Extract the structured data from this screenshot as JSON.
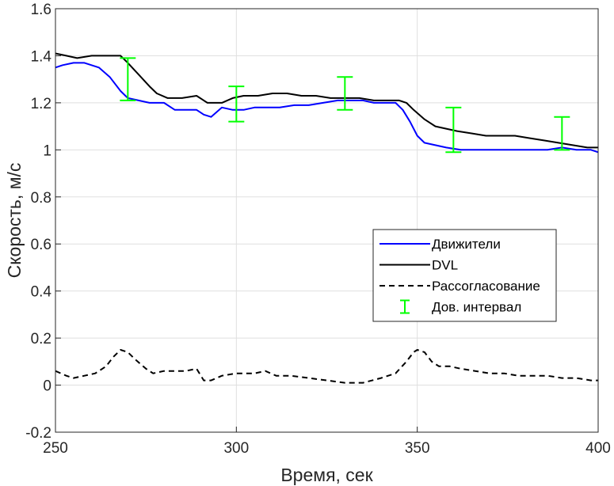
{
  "chart_data": {
    "type": "line",
    "xlabel": "Время, сек",
    "ylabel": "Скорость, м/с",
    "xlim": [
      250,
      400
    ],
    "ylim": [
      -0.2,
      1.6
    ],
    "xticks": [
      "250",
      "300",
      "350",
      "400"
    ],
    "yticks": [
      "-0.2",
      "0",
      "0.2",
      "0.4",
      "0.6",
      "0.8",
      "1",
      "1.2",
      "1.4",
      "1.6"
    ],
    "grid": true,
    "legend_position": "right-middle",
    "series": [
      {
        "name": "Движители",
        "color": "#0000ff",
        "style": "solid",
        "x": [
          250,
          252,
          255,
          258,
          262,
          265,
          268,
          270,
          273,
          276,
          280,
          283,
          286,
          289,
          291,
          293,
          296,
          299,
          302,
          305,
          308,
          312,
          316,
          320,
          324,
          328,
          332,
          335,
          338,
          341,
          344,
          346,
          348,
          350,
          352,
          355,
          358,
          362,
          366,
          370,
          374,
          378,
          382,
          386,
          390,
          394,
          398,
          400
        ],
        "y": [
          1.35,
          1.36,
          1.37,
          1.37,
          1.35,
          1.31,
          1.25,
          1.22,
          1.21,
          1.2,
          1.2,
          1.17,
          1.17,
          1.17,
          1.15,
          1.14,
          1.18,
          1.17,
          1.17,
          1.18,
          1.18,
          1.18,
          1.19,
          1.19,
          1.2,
          1.21,
          1.21,
          1.21,
          1.2,
          1.2,
          1.2,
          1.17,
          1.12,
          1.06,
          1.03,
          1.02,
          1.01,
          1.0,
          1.0,
          1.0,
          1.0,
          1.0,
          1.0,
          1.0,
          1.01,
          1.0,
          1.0,
          0.99
        ]
      },
      {
        "name": "DVL",
        "color": "#000000",
        "style": "solid",
        "x": [
          250,
          253,
          256,
          260,
          264,
          268,
          270,
          273,
          276,
          278,
          281,
          285,
          289,
          292,
          294,
          296,
          299,
          302,
          306,
          310,
          314,
          318,
          322,
          326,
          330,
          334,
          338,
          342,
          345,
          347,
          349,
          352,
          355,
          358,
          361,
          365,
          369,
          373,
          377,
          381,
          385,
          389,
          393,
          397,
          400
        ],
        "y": [
          1.41,
          1.4,
          1.39,
          1.4,
          1.4,
          1.4,
          1.37,
          1.32,
          1.27,
          1.24,
          1.22,
          1.22,
          1.23,
          1.2,
          1.2,
          1.2,
          1.22,
          1.23,
          1.23,
          1.24,
          1.24,
          1.23,
          1.23,
          1.22,
          1.22,
          1.22,
          1.21,
          1.21,
          1.21,
          1.2,
          1.17,
          1.13,
          1.1,
          1.09,
          1.08,
          1.07,
          1.06,
          1.06,
          1.06,
          1.05,
          1.04,
          1.03,
          1.02,
          1.01,
          1.01
        ]
      },
      {
        "name": "Рассогласование",
        "color": "#000000",
        "style": "dashed",
        "x": [
          250,
          253,
          255,
          258,
          261,
          264,
          266,
          268,
          270,
          272,
          275,
          277,
          280,
          283,
          286,
          289,
          291,
          293,
          296,
          300,
          305,
          308,
          311,
          315,
          320,
          325,
          330,
          335,
          340,
          344,
          347,
          349,
          350,
          352,
          354,
          356,
          359,
          362,
          366,
          370,
          374,
          378,
          382,
          386,
          390,
          394,
          398,
          400
        ],
        "y": [
          0.06,
          0.04,
          0.03,
          0.04,
          0.05,
          0.08,
          0.12,
          0.15,
          0.14,
          0.11,
          0.07,
          0.05,
          0.06,
          0.06,
          0.06,
          0.07,
          0.02,
          0.02,
          0.04,
          0.05,
          0.05,
          0.06,
          0.04,
          0.04,
          0.03,
          0.02,
          0.01,
          0.01,
          0.03,
          0.05,
          0.1,
          0.14,
          0.15,
          0.14,
          0.1,
          0.08,
          0.08,
          0.07,
          0.06,
          0.05,
          0.05,
          0.04,
          0.04,
          0.04,
          0.03,
          0.03,
          0.02,
          0.02
        ]
      },
      {
        "name": "Дов. интервал",
        "color": "#00ff00",
        "style": "errorbar",
        "x": [
          270,
          300,
          330,
          360,
          390
        ],
        "y": [
          1.3,
          1.2,
          1.24,
          1.09,
          1.07
        ],
        "lower": [
          1.21,
          1.12,
          1.17,
          0.99,
          1.0
        ],
        "upper": [
          1.39,
          1.27,
          1.31,
          1.18,
          1.14
        ]
      }
    ]
  }
}
